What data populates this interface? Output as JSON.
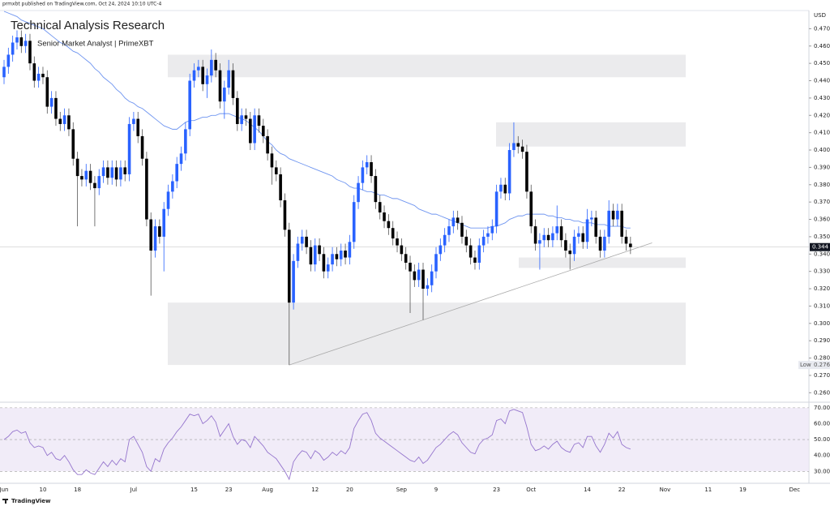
{
  "header": {
    "attribution": "prmxbt published on TradingView.com, Oct 24, 2024 10:10 UTC-4",
    "title": "Technical Analysis Research",
    "subtitle": "Senior Market Analyst | PrimeXBT"
  },
  "chart_data": {
    "type": "candlestick",
    "currency": "USD",
    "categories": [
      "Jun",
      null,
      null,
      null,
      null,
      null,
      null,
      null,
      null,
      "10",
      null,
      null,
      null,
      null,
      null,
      null,
      null,
      "18",
      null,
      null,
      null,
      null,
      null,
      null,
      null,
      null,
      null,
      null,
      null,
      null,
      "Jul",
      null,
      null,
      null,
      null,
      null,
      null,
      null,
      null,
      null,
      null,
      null,
      null,
      null,
      "15",
      null,
      null,
      null,
      null,
      null,
      null,
      null,
      "23",
      null,
      null,
      null,
      null,
      null,
      null,
      null,
      null,
      "Aug",
      null,
      null,
      null,
      null,
      null,
      null,
      null,
      null,
      null,
      null,
      "12",
      null,
      null,
      null,
      null,
      null,
      null,
      null,
      "20",
      null,
      null,
      null,
      null,
      null,
      null,
      null,
      null,
      null,
      null,
      null,
      "Sep",
      null,
      null,
      null,
      null,
      null,
      null,
      null,
      "9",
      null,
      null,
      null,
      null,
      null,
      null,
      null,
      null,
      null,
      null,
      null,
      null,
      null,
      "23",
      null,
      null,
      null,
      null,
      null,
      null,
      null,
      "Oct",
      null,
      null,
      null,
      null,
      null,
      null,
      null,
      null,
      null,
      null,
      null,
      null,
      "14",
      null,
      null,
      null,
      null,
      null,
      null,
      null,
      "22",
      null,
      null,
      null,
      null,
      null,
      null,
      null,
      null,
      null,
      "Nov",
      null,
      null,
      null,
      null,
      null,
      null,
      null,
      null,
      null,
      "11",
      null,
      null,
      null,
      null,
      null,
      null,
      null,
      "19",
      null,
      null,
      null,
      null,
      null,
      null,
      null,
      null,
      null,
      null,
      null,
      "Dec"
    ],
    "open": [
      0.442,
      0.448,
      0.455,
      0.462,
      0.465,
      0.46,
      0.463,
      0.45,
      0.44,
      0.444,
      0.442,
      0.425,
      0.43,
      0.418,
      0.415,
      0.42,
      0.412,
      0.395,
      0.385,
      0.383,
      0.388,
      0.381,
      0.378,
      0.385,
      0.39,
      0.384,
      0.39,
      0.383,
      0.39,
      0.386,
      0.415,
      0.418,
      0.408,
      0.395,
      0.36,
      0.342,
      0.356,
      0.35,
      0.366,
      0.376,
      0.382,
      0.392,
      0.398,
      0.412,
      0.44,
      0.446,
      0.448,
      0.438,
      0.443,
      0.452,
      0.446,
      0.428,
      0.436,
      0.446,
      0.43,
      0.415,
      0.42,
      0.418,
      0.404,
      0.42,
      0.414,
      0.408,
      0.398,
      0.39,
      0.386,
      0.371,
      0.354,
      0.312,
      0.336,
      0.346,
      0.35,
      0.344,
      0.334,
      0.345,
      0.34,
      0.33,
      0.334,
      0.34,
      0.337,
      0.342,
      0.338,
      0.347,
      0.37,
      0.381,
      0.39,
      0.393,
      0.385,
      0.37,
      0.364,
      0.359,
      0.355,
      0.349,
      0.345,
      0.34,
      0.335,
      0.33,
      0.325,
      0.331,
      0.32,
      0.322,
      0.33,
      0.34,
      0.345,
      0.351,
      0.356,
      0.361,
      0.358,
      0.35,
      0.345,
      0.338,
      0.335,
      0.345,
      0.35,
      0.352,
      0.356,
      0.376,
      0.38,
      0.375,
      0.4,
      0.404,
      0.402,
      0.399,
      0.376,
      0.356,
      0.346,
      0.348,
      0.351,
      0.348,
      0.352,
      0.356,
      0.348,
      0.342,
      0.34,
      0.35,
      0.352,
      0.347,
      0.36,
      0.361,
      0.35,
      0.342,
      0.35,
      0.365,
      0.36,
      0.365,
      0.35,
      0.346,
      null,
      null,
      null,
      null,
      null,
      null,
      null,
      null,
      null,
      null,
      null,
      null,
      null,
      null,
      null,
      null,
      null,
      null,
      null,
      null,
      null,
      null,
      null,
      null,
      null,
      null,
      null,
      null,
      null,
      null,
      null,
      null,
      null,
      null,
      null,
      null,
      null,
      null
    ],
    "high": [
      0.452,
      0.459,
      0.466,
      0.469,
      0.469,
      0.467,
      0.467,
      0.454,
      0.448,
      0.448,
      0.446,
      0.434,
      0.434,
      0.422,
      0.424,
      0.424,
      0.416,
      0.399,
      0.389,
      0.392,
      0.392,
      0.385,
      0.389,
      0.394,
      0.394,
      0.394,
      0.394,
      0.394,
      0.394,
      0.419,
      0.422,
      0.422,
      0.412,
      0.399,
      0.364,
      0.36,
      0.36,
      0.37,
      0.38,
      0.386,
      0.396,
      0.402,
      0.416,
      0.444,
      0.45,
      0.452,
      0.452,
      0.447,
      0.458,
      0.456,
      0.45,
      0.44,
      0.452,
      0.45,
      0.434,
      0.424,
      0.424,
      0.422,
      0.424,
      0.424,
      0.418,
      0.412,
      0.402,
      0.394,
      0.39,
      0.375,
      0.358,
      0.34,
      0.35,
      0.354,
      0.354,
      0.348,
      0.349,
      0.349,
      0.344,
      0.338,
      0.344,
      0.344,
      0.346,
      0.346,
      0.351,
      0.374,
      0.385,
      0.394,
      0.397,
      0.397,
      0.389,
      0.374,
      0.368,
      0.363,
      0.359,
      0.353,
      0.349,
      0.344,
      0.339,
      0.334,
      0.335,
      0.335,
      0.326,
      0.334,
      0.344,
      0.349,
      0.355,
      0.36,
      0.365,
      0.365,
      0.362,
      0.354,
      0.349,
      0.342,
      0.349,
      0.354,
      0.356,
      0.36,
      0.38,
      0.384,
      0.384,
      0.404,
      0.416,
      0.408,
      0.406,
      0.403,
      0.38,
      0.36,
      0.352,
      0.355,
      0.355,
      0.356,
      0.368,
      0.36,
      0.352,
      0.346,
      0.354,
      0.356,
      0.356,
      0.366,
      0.365,
      0.365,
      0.354,
      0.354,
      0.371,
      0.369,
      0.369,
      0.369,
      0.354,
      0.35,
      null,
      null,
      null,
      null,
      null,
      null,
      null,
      null,
      null,
      null,
      null,
      null,
      null,
      null,
      null,
      null,
      null,
      null,
      null,
      null,
      null,
      null,
      null,
      null,
      null,
      null,
      null,
      null,
      null,
      null,
      null,
      null,
      null,
      null,
      null,
      null,
      null,
      null
    ],
    "low": [
      0.438,
      0.444,
      0.451,
      0.458,
      0.456,
      0.456,
      0.446,
      0.436,
      0.436,
      0.438,
      0.421,
      0.421,
      0.414,
      0.411,
      0.411,
      0.408,
      0.391,
      0.356,
      0.379,
      0.379,
      0.377,
      0.356,
      0.374,
      0.381,
      0.38,
      0.38,
      0.379,
      0.379,
      0.382,
      0.382,
      0.411,
      0.404,
      0.391,
      0.356,
      0.316,
      0.338,
      0.346,
      0.33,
      0.362,
      0.372,
      0.378,
      0.388,
      0.394,
      0.408,
      0.436,
      0.442,
      0.434,
      0.43,
      0.439,
      0.442,
      0.424,
      0.418,
      0.432,
      0.426,
      0.411,
      0.411,
      0.414,
      0.4,
      0.4,
      0.41,
      0.404,
      0.394,
      0.38,
      0.382,
      0.367,
      0.35,
      0.276,
      0.308,
      0.332,
      0.342,
      0.34,
      0.33,
      0.33,
      0.336,
      0.326,
      0.326,
      0.33,
      0.333,
      0.333,
      0.334,
      0.334,
      0.343,
      0.366,
      0.377,
      0.386,
      0.381,
      0.366,
      0.36,
      0.355,
      0.351,
      0.345,
      0.341,
      0.336,
      0.331,
      0.306,
      0.321,
      0.321,
      0.302,
      0.316,
      0.318,
      0.326,
      0.336,
      0.341,
      0.347,
      0.352,
      0.354,
      0.346,
      0.341,
      0.334,
      0.331,
      0.331,
      0.341,
      0.346,
      0.348,
      0.352,
      0.372,
      0.371,
      0.371,
      0.396,
      0.398,
      0.395,
      0.372,
      0.352,
      0.342,
      0.331,
      0.344,
      0.344,
      0.344,
      0.348,
      0.344,
      0.338,
      0.331,
      0.336,
      0.346,
      0.343,
      0.343,
      0.356,
      0.346,
      0.338,
      0.338,
      0.346,
      0.356,
      0.356,
      0.346,
      0.342,
      0.34,
      null,
      null,
      null,
      null,
      null,
      null,
      null,
      null,
      null,
      null,
      null,
      null,
      null,
      null,
      null,
      null,
      null,
      null,
      null,
      null,
      null,
      null,
      null,
      null,
      null,
      null,
      null,
      null,
      null,
      null,
      null,
      null,
      null,
      null,
      null,
      null,
      null,
      null
    ],
    "close": [
      0.448,
      0.455,
      0.462,
      0.465,
      0.46,
      0.463,
      0.45,
      0.44,
      0.444,
      0.442,
      0.425,
      0.43,
      0.418,
      0.415,
      0.42,
      0.412,
      0.395,
      0.385,
      0.383,
      0.388,
      0.381,
      0.378,
      0.385,
      0.39,
      0.384,
      0.39,
      0.383,
      0.39,
      0.386,
      0.415,
      0.418,
      0.408,
      0.395,
      0.36,
      0.342,
      0.356,
      0.35,
      0.366,
      0.376,
      0.382,
      0.392,
      0.398,
      0.412,
      0.44,
      0.446,
      0.448,
      0.438,
      0.443,
      0.452,
      0.446,
      0.428,
      0.436,
      0.446,
      0.43,
      0.415,
      0.42,
      0.418,
      0.404,
      0.42,
      0.414,
      0.408,
      0.398,
      0.39,
      0.386,
      0.371,
      0.354,
      0.312,
      0.336,
      0.346,
      0.35,
      0.344,
      0.334,
      0.345,
      0.34,
      0.33,
      0.334,
      0.34,
      0.337,
      0.342,
      0.338,
      0.347,
      0.37,
      0.381,
      0.39,
      0.393,
      0.385,
      0.37,
      0.364,
      0.359,
      0.355,
      0.349,
      0.345,
      0.34,
      0.335,
      0.33,
      0.325,
      0.331,
      0.32,
      0.322,
      0.33,
      0.34,
      0.345,
      0.351,
      0.356,
      0.361,
      0.358,
      0.35,
      0.345,
      0.338,
      0.335,
      0.345,
      0.35,
      0.352,
      0.356,
      0.376,
      0.38,
      0.375,
      0.4,
      0.404,
      0.402,
      0.399,
      0.376,
      0.356,
      0.346,
      0.348,
      0.351,
      0.348,
      0.352,
      0.356,
      0.348,
      0.342,
      0.34,
      0.35,
      0.352,
      0.347,
      0.36,
      0.361,
      0.35,
      0.342,
      0.35,
      0.365,
      0.36,
      0.365,
      0.35,
      0.346,
      0.344,
      null,
      null,
      null,
      null,
      null,
      null,
      null,
      null,
      null,
      null,
      null,
      null,
      null,
      null,
      null,
      null,
      null,
      null,
      null,
      null,
      null,
      null,
      null,
      null,
      null,
      null,
      null,
      null,
      null,
      null,
      null,
      null,
      null,
      null,
      null,
      null,
      null,
      null
    ],
    "up_color": "#2962ff",
    "down_color": "#000000",
    "ylim": [
      0.255,
      0.48
    ],
    "yticks": [
      {
        "value": 0.26,
        "label": "0.260"
      },
      {
        "value": 0.27,
        "label": "0.270"
      },
      {
        "value": 0.28,
        "label": "0.280"
      },
      {
        "value": 0.29,
        "label": "0.290"
      },
      {
        "value": 0.3,
        "label": "0.300"
      },
      {
        "value": 0.31,
        "label": "0.310"
      },
      {
        "value": 0.32,
        "label": "0.320"
      },
      {
        "value": 0.33,
        "label": "0.330"
      },
      {
        "value": 0.34,
        "label": "0.340"
      },
      {
        "value": 0.35,
        "label": "0.350"
      },
      {
        "value": 0.36,
        "label": "0.360"
      },
      {
        "value": 0.37,
        "label": "0.370"
      },
      {
        "value": 0.38,
        "label": "0.380"
      },
      {
        "value": 0.39,
        "label": "0.390"
      },
      {
        "value": 0.4,
        "label": "0.400"
      },
      {
        "value": 0.41,
        "label": "0.410"
      },
      {
        "value": 0.42,
        "label": "0.420"
      },
      {
        "value": 0.43,
        "label": "0.430"
      },
      {
        "value": 0.44,
        "label": "0.440"
      },
      {
        "value": 0.45,
        "label": "0.450"
      },
      {
        "value": 0.46,
        "label": "0.460"
      },
      {
        "value": 0.47,
        "label": "0.470"
      }
    ],
    "ma": {
      "color": "#6f95f0",
      "values": [
        0.48,
        0.479,
        0.478,
        0.477,
        0.475,
        0.474,
        0.473,
        0.472,
        0.471,
        0.47,
        0.468,
        0.466,
        0.464,
        0.462,
        0.461,
        0.459,
        0.457,
        0.456,
        0.454,
        0.452,
        0.45,
        0.447,
        0.445,
        0.442,
        0.44,
        0.438,
        0.435,
        0.433,
        0.43,
        0.428,
        0.427,
        0.425,
        0.424,
        0.422,
        0.42,
        0.418,
        0.416,
        0.414,
        0.413,
        0.412,
        0.412,
        0.414,
        0.416,
        0.417,
        0.417,
        0.418,
        0.419,
        0.419,
        0.42,
        0.42,
        0.421,
        0.421,
        0.421,
        0.42,
        0.419,
        0.418,
        0.417,
        0.415,
        0.413,
        0.411,
        0.408,
        0.405,
        0.403,
        0.4,
        0.398,
        0.397,
        0.395,
        0.394,
        0.393,
        0.392,
        0.391,
        0.39,
        0.389,
        0.388,
        0.387,
        0.386,
        0.385,
        0.383,
        0.382,
        0.381,
        0.379,
        0.378,
        0.378,
        0.377,
        0.376,
        0.376,
        0.375,
        0.374,
        0.374,
        0.373,
        0.372,
        0.372,
        0.371,
        0.37,
        0.369,
        0.368,
        0.366,
        0.365,
        0.364,
        0.363,
        0.363,
        0.362,
        0.361,
        0.36,
        0.359,
        0.358,
        0.357,
        0.356,
        0.355,
        0.355,
        0.355,
        0.355,
        0.355,
        0.356,
        0.356,
        0.357,
        0.358,
        0.36,
        0.361,
        0.362,
        0.362,
        0.363,
        0.363,
        0.363,
        0.363,
        0.363,
        0.362,
        0.362,
        0.361,
        0.361,
        0.36,
        0.36,
        0.359,
        0.359,
        0.358,
        0.358,
        0.358,
        0.357,
        0.357,
        0.357,
        0.356,
        0.356,
        0.356,
        0.356,
        0.355,
        0.355,
        null,
        null,
        null,
        null,
        null,
        null,
        null,
        null,
        null,
        null,
        null,
        null,
        null,
        null,
        null,
        null,
        null,
        null,
        null,
        null,
        null,
        null,
        null,
        null,
        null,
        null,
        null,
        null,
        null,
        null,
        null,
        null,
        null,
        null,
        null,
        null,
        null,
        null
      ]
    },
    "zones": [
      {
        "top": 0.455,
        "bottom": 0.442
      },
      {
        "top": 0.416,
        "bottom": 0.402
      },
      {
        "top": 0.338,
        "bottom": 0.332
      },
      {
        "top": 0.312,
        "bottom": 0.276
      }
    ],
    "low_label": "Low",
    "rsi": {
      "color": "#9575cd",
      "ylim": [
        23,
        73
      ],
      "yticks": [
        {
          "value": 30,
          "label": "30.00"
        },
        {
          "value": 40,
          "label": "40.00"
        },
        {
          "value": 50,
          "label": "50.00"
        },
        {
          "value": 60,
          "label": "60.00"
        },
        {
          "value": 70,
          "label": "70.00"
        }
      ],
      "values": [
        50,
        52,
        55,
        56,
        54,
        55,
        48,
        45,
        46,
        45,
        40,
        42,
        38,
        37,
        40,
        36,
        31,
        28,
        28,
        31,
        29,
        28,
        32,
        36,
        33,
        37,
        34,
        38,
        36,
        50,
        52,
        47,
        42,
        33,
        30,
        38,
        36,
        44,
        48,
        51,
        55,
        58,
        62,
        66,
        65,
        66,
        60,
        62,
        65,
        61,
        52,
        56,
        60,
        52,
        47,
        50,
        49,
        45,
        52,
        49,
        46,
        42,
        40,
        38,
        34,
        30,
        25,
        36,
        40,
        43,
        42,
        38,
        43,
        41,
        37,
        39,
        42,
        40,
        43,
        41,
        45,
        57,
        62,
        66,
        67,
        62,
        54,
        51,
        49,
        47,
        45,
        43,
        41,
        39,
        37,
        36,
        39,
        35,
        37,
        41,
        45,
        47,
        50,
        53,
        55,
        53,
        48,
        45,
        42,
        41,
        47,
        50,
        51,
        53,
        62,
        63,
        60,
        68,
        69,
        68,
        67,
        58,
        47,
        43,
        44,
        46,
        44,
        47,
        49,
        45,
        43,
        42,
        47,
        48,
        45,
        52,
        52,
        46,
        42,
        47,
        54,
        51,
        55,
        47,
        45,
        44,
        null,
        null,
        null,
        null,
        null,
        null,
        null,
        null,
        null,
        null,
        null,
        null,
        null,
        null,
        null,
        null,
        null,
        null,
        null,
        null,
        null,
        null,
        null,
        null,
        null,
        null,
        null,
        null,
        null,
        null,
        null,
        null,
        null,
        null,
        null,
        null,
        null,
        null
      ]
    }
  },
  "footer": "TradingView"
}
